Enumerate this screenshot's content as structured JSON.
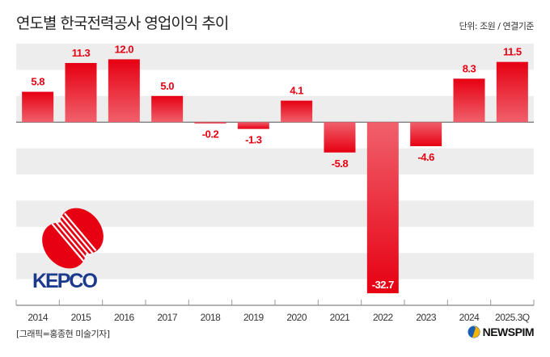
{
  "header": {
    "title": "연도별 한국전력공사 영업이익 추이",
    "unit": "단위: 조원 / 연결기준"
  },
  "footer": {
    "credit": "[그래픽=홍종현 미술기자]",
    "brand": "NEWSPIM"
  },
  "logo": {
    "text": "KEPCO"
  },
  "colors": {
    "bar": "#e60012",
    "bar_light": "#f0606c",
    "band": "#ededed",
    "logo_blue": "#1b3a8c"
  },
  "chart_data": {
    "type": "bar",
    "categories": [
      "2014",
      "2015",
      "2016",
      "2017",
      "2018",
      "2019",
      "2020",
      "2021",
      "2022",
      "2023",
      "2024",
      "2025.3Q"
    ],
    "values": [
      5.8,
      11.3,
      12.0,
      5.0,
      -0.2,
      -1.3,
      4.1,
      -5.8,
      -32.7,
      -4.6,
      8.3,
      11.5
    ],
    "labels": [
      "5.8",
      "11.3",
      "12.0",
      "5.0",
      "-0.2",
      "-1.3",
      "4.1",
      "-5.8",
      "-32.7",
      "-4.6",
      "8.3",
      "11.5"
    ],
    "ylim": [
      -35,
      15
    ],
    "grid": "alternating bands every 5",
    "title": "연도별 한국전력공사 영업이익 추이"
  }
}
